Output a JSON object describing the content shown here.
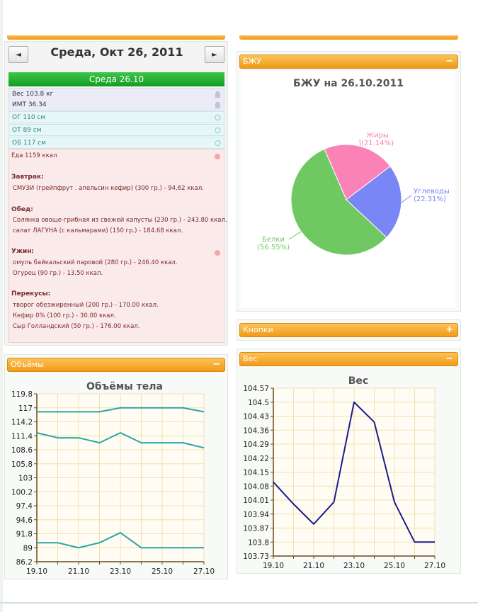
{
  "day_nav": {
    "prev_label": "◄",
    "next_label": "►",
    "title": "Среда, Окт 26, 2011",
    "day_header": "Среда 26.10"
  },
  "measurements": [
    {
      "label": "Вес 103.8 кг",
      "icon": "scale-icon"
    },
    {
      "label": "ИМТ 36.34",
      "icon": "scale-icon"
    },
    {
      "label": "ОГ 110 см",
      "icon": "tape-icon"
    },
    {
      "label": "ОТ 89 см",
      "icon": "tape-icon"
    },
    {
      "label": "ОБ 117 см",
      "icon": "tape-icon"
    }
  ],
  "food": {
    "total": "Еда 1159 ккал",
    "sections": [
      {
        "title": "Завтрак:",
        "items": [
          "СМУЗИ (грейпфрут . апельсин кефир) (300 гр.) - 94.62 ккал."
        ]
      },
      {
        "title": "Обед:",
        "items": [
          "Солянка овоще-грибная из свежей капусты (230 гр.) - 243.80 ккал.",
          "салат ЛАГУНА (с кальмарами) (150 гр.) - 184.68 ккал."
        ]
      },
      {
        "title": "Ужин:",
        "items": [
          "омуль байкальский паровой (280 гр.) - 246.40 ккал.",
          "Огурец (90 гр.) - 13.50 ккал."
        ]
      },
      {
        "title": "Перекусы:",
        "items": [
          "творог обезжиренный (200 гр.) - 170.00 ккал.",
          "Кефир 0% (100 гр.) - 30.00 ккал.",
          "Сыр Голландский (50 гр.) - 176.00 ккал."
        ]
      }
    ]
  },
  "panels": {
    "bju": {
      "title": "БЖУ",
      "toggle": "−"
    },
    "buttons": {
      "title": "Кнопки",
      "toggle": "+"
    },
    "weight": {
      "title": "Вес",
      "toggle": "−"
    },
    "volumes": {
      "title": "Объёмы",
      "toggle": "−"
    }
  },
  "colors": {
    "accent": "#f5a623",
    "green": "#1ea82c",
    "series": "#2aa5a5",
    "weight_line": "#1c1c8c"
  },
  "chart_data": [
    {
      "type": "pie",
      "title": "БЖУ на 26.10.2011",
      "slices": [
        {
          "name": "Жиры",
          "value": 21.14,
          "label": "(21.14%)",
          "color": "#fb82b6"
        },
        {
          "name": "Углеводы",
          "value": 22.31,
          "label": "(22.31%)",
          "color": "#7b86f6"
        },
        {
          "name": "Белки",
          "value": 56.55,
          "label": "(56.55%)",
          "color": "#6fc862"
        }
      ]
    },
    {
      "type": "line",
      "title": "Вес",
      "ylim": [
        103.73,
        104.57
      ],
      "y_ticks": [
        "104.57",
        "104.5",
        "104.43",
        "104.36",
        "104.29",
        "104.22",
        "104.15",
        "104.08",
        "104.01",
        "103.94",
        "103.87",
        "103.8",
        "103.73"
      ],
      "x_ticks": [
        "19.10",
        "21.10",
        "23.10",
        "25.10",
        "27.10"
      ],
      "x": [
        "19.10",
        "20.10",
        "21.10",
        "22.10",
        "23.10",
        "24.10",
        "25.10",
        "26.10",
        "27.10"
      ],
      "series": [
        {
          "values": [
            104.1,
            103.99,
            103.89,
            104.0,
            104.5,
            104.4,
            104.0,
            103.8,
            103.8
          ]
        }
      ]
    },
    {
      "type": "line",
      "title": "Объёмы тела",
      "ylim": [
        86.2,
        119.8
      ],
      "y_ticks": [
        "119.8",
        "117",
        "114.2",
        "111.4",
        "108.6",
        "105.8",
        "103",
        "100.2",
        "97.4",
        "94.6",
        "91.8",
        "89",
        "86.2"
      ],
      "x_ticks": [
        "19.10",
        "21.10",
        "23.10",
        "25.10",
        "27.10"
      ],
      "x": [
        "19.10",
        "20.10",
        "21.10",
        "22.10",
        "23.10",
        "24.10",
        "25.10",
        "26.10",
        "27.10"
      ],
      "series": [
        {
          "values": [
            116.2,
            116.2,
            116.2,
            116.2,
            117.0,
            117.0,
            117.0,
            117.0,
            116.2
          ]
        },
        {
          "values": [
            112.0,
            111.0,
            111.0,
            110.0,
            112.0,
            110.0,
            110.0,
            110.0,
            109.0
          ]
        },
        {
          "values": [
            90.0,
            90.0,
            89.0,
            90.0,
            92.0,
            89.0,
            89.0,
            89.0,
            89.0
          ]
        }
      ]
    }
  ]
}
